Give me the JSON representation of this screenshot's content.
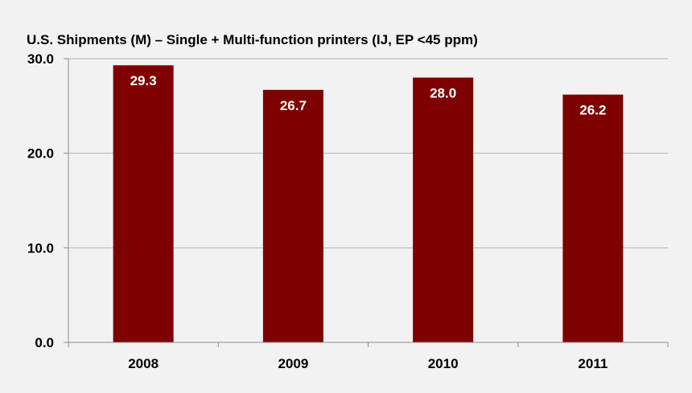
{
  "chart_data": {
    "type": "bar",
    "title": "U.S. Shipments (M) – Single + Multi-function printers (IJ, EP <45 ppm)",
    "categories": [
      "2008",
      "2009",
      "2010",
      "2011"
    ],
    "values": [
      29.3,
      26.7,
      28.0,
      26.2
    ],
    "data_labels": [
      "29.3",
      "26.7",
      "28.0",
      "26.2"
    ],
    "yticks": [
      0,
      10,
      20,
      30
    ],
    "ytick_labels": [
      "0.0",
      "10.0",
      "20.0",
      "30.0"
    ],
    "ylim": [
      0,
      30
    ],
    "xlabel": "",
    "ylabel": "",
    "grid": true,
    "legend": "none"
  },
  "colors": {
    "bar": "#7f0000",
    "background": "#f2f2f2",
    "grid": "#b3b3b3",
    "axis": "#8c8c8c"
  }
}
